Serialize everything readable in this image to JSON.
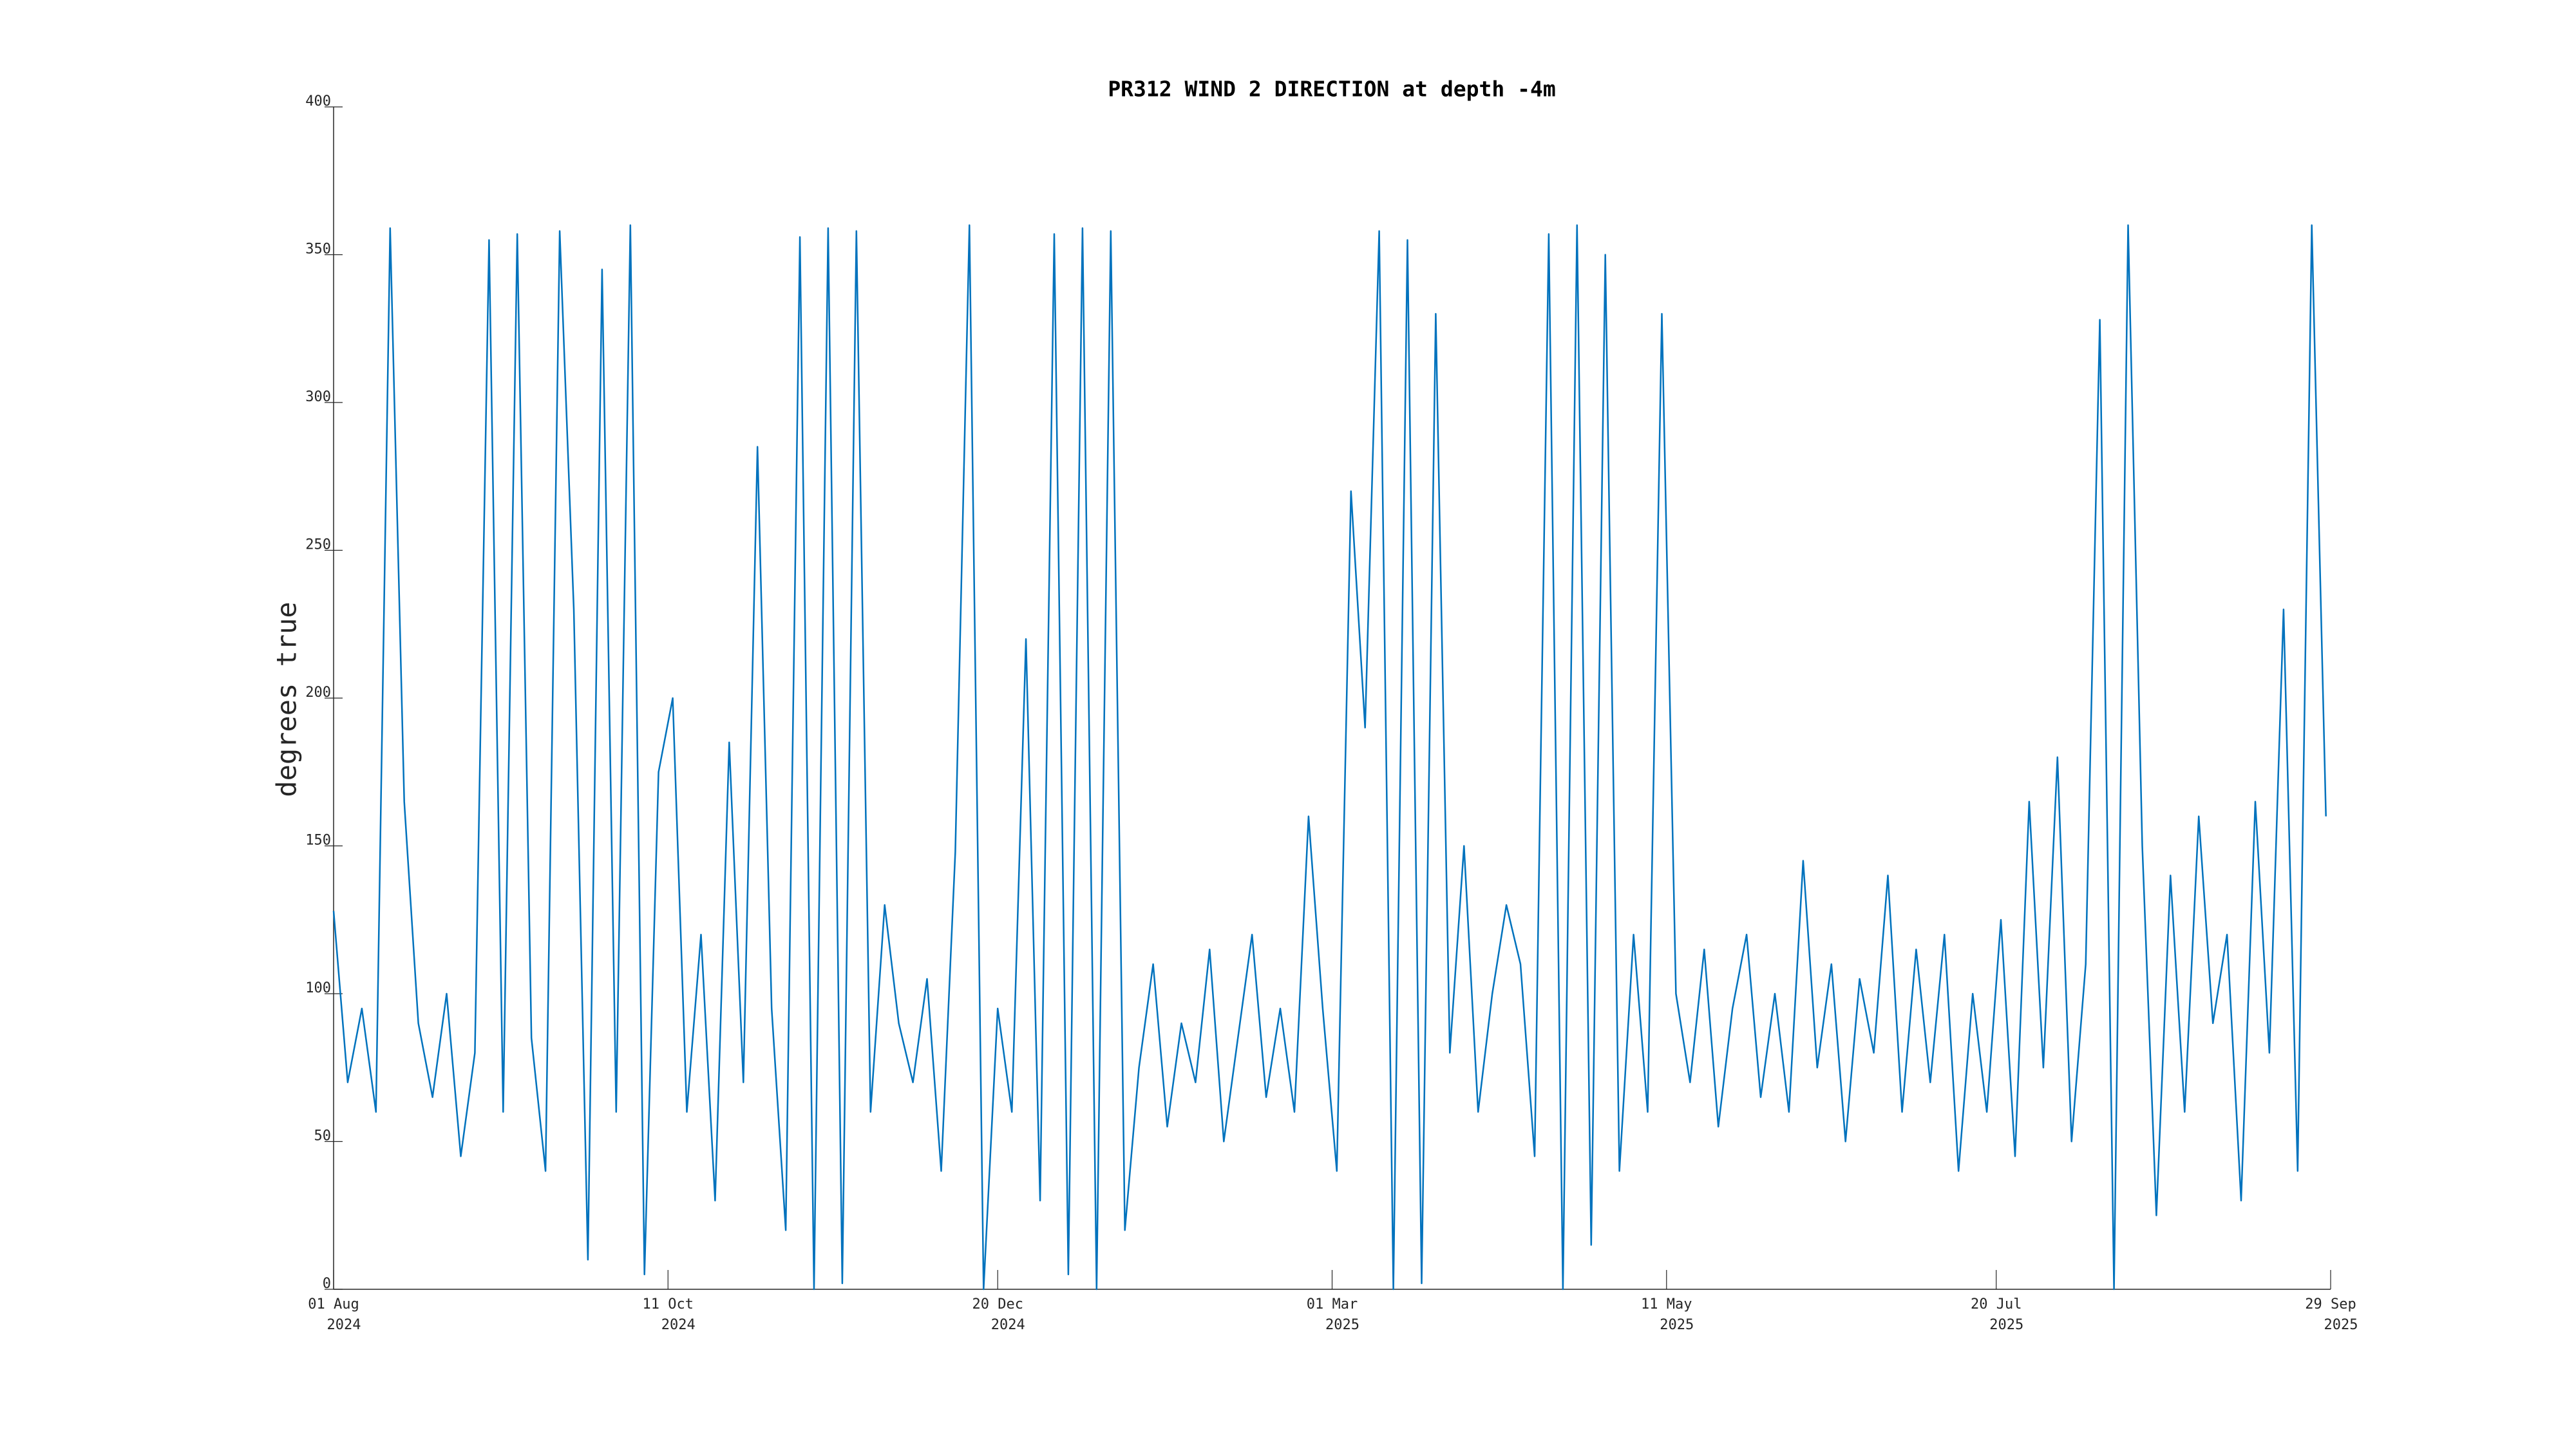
{
  "chart_data": {
    "type": "line",
    "title": "PR312 WIND 2 DIRECTION at depth -4m",
    "ylabel": "degrees true",
    "color": "#0072bd",
    "grid": false,
    "xlim": [
      "2024-08-01",
      "2025-09-29"
    ],
    "ylim": [
      0,
      400
    ],
    "yticks": [
      0,
      50,
      100,
      150,
      200,
      250,
      300,
      350,
      400
    ],
    "xticks": [
      {
        "value": "2024-08-01",
        "label": [
          "01 Aug",
          "2024"
        ]
      },
      {
        "value": "2024-10-11",
        "label": [
          "11 Oct",
          "2024"
        ]
      },
      {
        "value": "2024-12-20",
        "label": [
          "20 Dec",
          "2024"
        ]
      },
      {
        "value": "2025-03-01",
        "label": [
          "01 Mar",
          "2025"
        ]
      },
      {
        "value": "2025-05-11",
        "label": [
          "11 May",
          "2025"
        ]
      },
      {
        "value": "2025-07-20",
        "label": [
          "20 Jul",
          "2025"
        ]
      },
      {
        "value": "2025-09-29",
        "label": [
          "29 Sep",
          "2025"
        ]
      }
    ],
    "x": [
      "2024-08-01",
      "2024-08-04",
      "2024-08-07",
      "2024-08-10",
      "2024-08-13",
      "2024-08-16",
      "2024-08-19",
      "2024-08-22",
      "2024-08-25",
      "2024-08-28",
      "2024-08-31",
      "2024-09-03",
      "2024-09-06",
      "2024-09-09",
      "2024-09-12",
      "2024-09-15",
      "2024-09-18",
      "2024-09-21",
      "2024-09-24",
      "2024-09-27",
      "2024-09-30",
      "2024-10-03",
      "2024-10-06",
      "2024-10-09",
      "2024-10-12",
      "2024-10-15",
      "2024-10-18",
      "2024-10-21",
      "2024-10-24",
      "2024-10-27",
      "2024-10-30",
      "2024-11-02",
      "2024-11-05",
      "2024-11-08",
      "2024-11-11",
      "2024-11-14",
      "2024-11-17",
      "2024-11-20",
      "2024-11-23",
      "2024-11-26",
      "2024-11-29",
      "2024-12-02",
      "2024-12-05",
      "2024-12-08",
      "2024-12-11",
      "2024-12-14",
      "2024-12-17",
      "2024-12-20",
      "2024-12-23",
      "2024-12-26",
      "2024-12-29",
      "2025-01-01",
      "2025-01-04",
      "2025-01-07",
      "2025-01-10",
      "2025-01-13",
      "2025-01-16",
      "2025-01-19",
      "2025-01-22",
      "2025-01-25",
      "2025-01-28",
      "2025-01-31",
      "2025-02-03",
      "2025-02-06",
      "2025-02-09",
      "2025-02-12",
      "2025-02-15",
      "2025-02-18",
      "2025-02-21",
      "2025-02-24",
      "2025-02-27",
      "2025-03-02",
      "2025-03-05",
      "2025-03-08",
      "2025-03-11",
      "2025-03-14",
      "2025-03-17",
      "2025-03-20",
      "2025-03-23",
      "2025-03-26",
      "2025-03-29",
      "2025-04-01",
      "2025-04-04",
      "2025-04-07",
      "2025-04-10",
      "2025-04-13",
      "2025-04-16",
      "2025-04-19",
      "2025-04-22",
      "2025-04-25",
      "2025-04-28",
      "2025-05-01",
      "2025-05-04",
      "2025-05-07",
      "2025-05-10",
      "2025-05-13",
      "2025-05-16",
      "2025-05-19",
      "2025-05-22",
      "2025-05-25",
      "2025-05-28",
      "2025-05-31",
      "2025-06-03",
      "2025-06-06",
      "2025-06-09",
      "2025-06-12",
      "2025-06-15",
      "2025-06-18",
      "2025-06-21",
      "2025-06-24",
      "2025-06-27",
      "2025-06-30",
      "2025-07-03",
      "2025-07-06",
      "2025-07-09",
      "2025-07-12",
      "2025-07-15",
      "2025-07-18",
      "2025-07-21",
      "2025-07-24",
      "2025-07-27",
      "2025-07-30",
      "2025-08-02",
      "2025-08-05",
      "2025-08-08",
      "2025-08-11",
      "2025-08-14",
      "2025-08-17",
      "2025-08-20",
      "2025-08-23",
      "2025-08-26",
      "2025-08-29",
      "2025-09-01",
      "2025-09-04",
      "2025-09-07",
      "2025-09-10",
      "2025-09-13",
      "2025-09-16",
      "2025-09-19",
      "2025-09-22",
      "2025-09-25",
      "2025-09-28"
    ],
    "values": [
      128,
      70,
      95,
      60,
      359,
      165,
      90,
      65,
      100,
      45,
      80,
      355,
      60,
      357,
      85,
      40,
      358,
      230,
      10,
      345,
      60,
      360,
      5,
      175,
      200,
      60,
      120,
      30,
      185,
      70,
      285,
      95,
      20,
      356,
      0,
      359,
      2,
      358,
      60,
      130,
      90,
      70,
      105,
      40,
      148,
      360,
      0,
      95,
      60,
      220,
      30,
      357,
      5,
      359,
      0,
      358,
      20,
      75,
      110,
      55,
      90,
      70,
      115,
      50,
      85,
      120,
      65,
      95,
      60,
      160,
      95,
      40,
      270,
      190,
      358,
      0,
      355,
      2,
      330,
      80,
      150,
      60,
      100,
      130,
      110,
      45,
      357,
      0,
      360,
      15,
      350,
      40,
      120,
      60,
      330,
      100,
      70,
      115,
      55,
      95,
      120,
      65,
      100,
      60,
      145,
      75,
      110,
      50,
      105,
      80,
      140,
      60,
      115,
      70,
      120,
      40,
      100,
      60,
      125,
      45,
      165,
      75,
      180,
      50,
      110,
      328,
      0,
      360,
      150,
      25,
      140,
      60,
      160,
      90,
      120,
      30,
      165,
      80,
      230,
      40,
      360,
      160
    ]
  }
}
